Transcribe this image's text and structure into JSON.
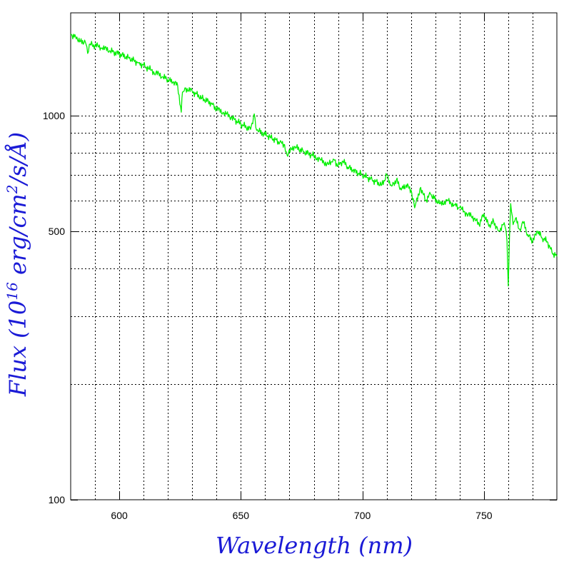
{
  "chart_data": {
    "type": "line",
    "xlabel": "Wavelength (nm)",
    "ylabel_parts": {
      "lead": "Flux (10",
      "exp1": "16",
      "mid": " erg/cm",
      "exp2": "2",
      "tail": "/s/Å)"
    },
    "xlim": [
      580,
      780
    ],
    "ylim": [
      100,
      1850
    ],
    "y_scale": "log",
    "grid": true,
    "x_ticks": [
      600,
      650,
      700,
      750
    ],
    "x_tick_labels": [
      "600",
      "650",
      "700",
      "750"
    ],
    "x_gridlines": [
      590,
      600,
      610,
      620,
      630,
      640,
      650,
      660,
      670,
      680,
      690,
      700,
      710,
      720,
      730,
      740,
      750,
      760,
      770
    ],
    "y_ticks": [
      100,
      500,
      1000
    ],
    "y_tick_labels": [
      "100",
      "500",
      "1000"
    ],
    "y_gridlines": [
      200,
      300,
      400,
      500,
      600,
      700,
      800,
      900,
      1000
    ],
    "series": [
      {
        "color": "#00ee00",
        "x": [
          580,
          582,
          584,
          586,
          587,
          588,
          590,
          593,
          596,
          600,
          604,
          608,
          610,
          612,
          615,
          618,
          620,
          622,
          624,
          625.5,
          626,
          627,
          630,
          634,
          638,
          640,
          643,
          646,
          650,
          654,
          655.5,
          656.5,
          658,
          662,
          666,
          668,
          669,
          672,
          676,
          680,
          683,
          686,
          688,
          690,
          692,
          694,
          696,
          700,
          704,
          708,
          710,
          712,
          714,
          716,
          718,
          720,
          721.5,
          723,
          724,
          726,
          728,
          730,
          732,
          735,
          738,
          740,
          743,
          746,
          748,
          750,
          752,
          754,
          756,
          758,
          759,
          759.5,
          760,
          760.5,
          761,
          762,
          763,
          765,
          766,
          768,
          770,
          772,
          774,
          776,
          778,
          780
        ],
        "y": [
          1625,
          1605,
          1560,
          1555,
          1450,
          1535,
          1520,
          1500,
          1475,
          1445,
          1410,
          1370,
          1350,
          1325,
          1290,
          1260,
          1240,
          1220,
          1200,
          1020,
          1150,
          1180,
          1155,
          1110,
          1075,
          1040,
          1015,
          990,
          950,
          920,
          1010,
          915,
          905,
          880,
          850,
          840,
          790,
          830,
          805,
          785,
          765,
          745,
          770,
          740,
          760,
          735,
          720,
          700,
          680,
          660,
          700,
          655,
          680,
          640,
          660,
          640,
          575,
          625,
          650,
          600,
          625,
          605,
          590,
          600,
          585,
          575,
          555,
          540,
          520,
          555,
          515,
          530,
          500,
          520,
          505,
          470,
          360,
          480,
          590,
          520,
          540,
          500,
          530,
          490,
          470,
          500,
          480,
          470,
          440,
          430
        ]
      }
    ]
  }
}
